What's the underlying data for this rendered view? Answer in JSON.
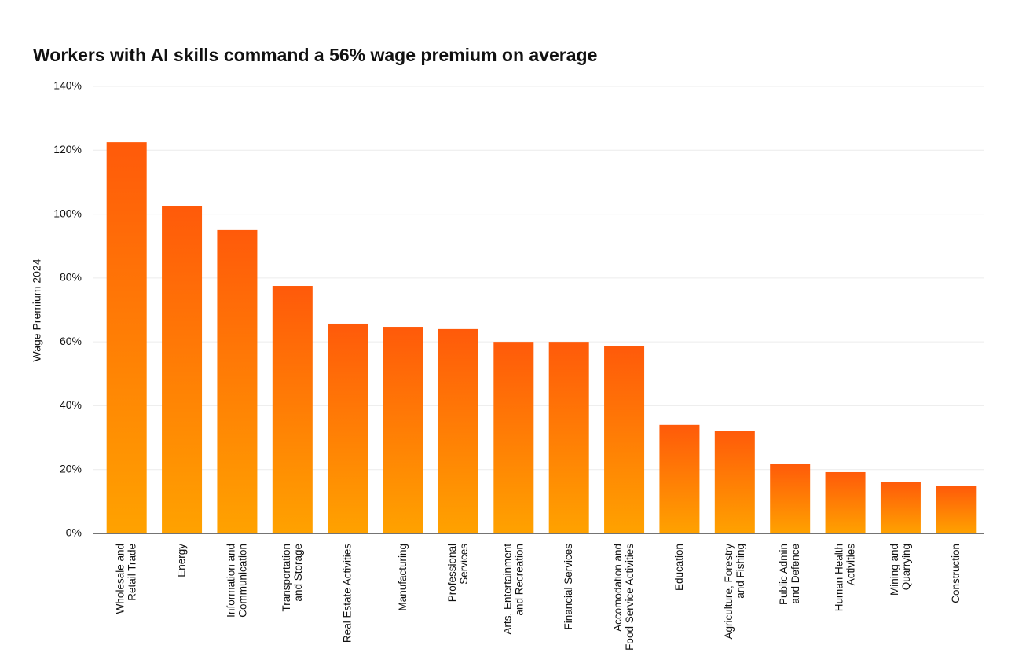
{
  "chart_data": {
    "type": "bar",
    "title": "Workers with AI skills command a 56% wage premium on average",
    "y_label": "Wage Premium 2024",
    "categories": [
      "Wholesale and\nRetail Trade",
      "Energy",
      "Information and\nCommunication",
      "Transportation\nand Storage",
      "Real Estate Activities",
      "Manufacturing",
      "Professional\nServices",
      "Arts, Entertainment\nand Recreation",
      "Financial Services",
      "Accomodation and\nFood Service Activities",
      "Education",
      "Agriculture, Forestry\nand Fishing",
      "Public Admin\nand Defence",
      "Human Health\nActivities",
      "Mining and\nQuarrying",
      "Construction"
    ],
    "values": [
      122.5,
      102.6,
      95,
      77.5,
      65.7,
      64.7,
      64,
      60,
      60,
      58.6,
      34,
      32.2,
      21.9,
      19.2,
      16.2,
      14.8
    ],
    "gradient": [
      "#ff5a0a",
      "#ffa200"
    ],
    "ylim": [
      0,
      140
    ],
    "yticks": [
      {
        "value": 0,
        "label": "0%"
      },
      {
        "value": 20,
        "label": "20%"
      },
      {
        "value": 40,
        "label": "40%"
      },
      {
        "value": 60,
        "label": "60%"
      },
      {
        "value": 80,
        "label": "80%"
      },
      {
        "value": 100,
        "label": "100%"
      },
      {
        "value": 120,
        "label": "120%"
      },
      {
        "value": 140,
        "label": "140%"
      }
    ],
    "grid": true
  }
}
